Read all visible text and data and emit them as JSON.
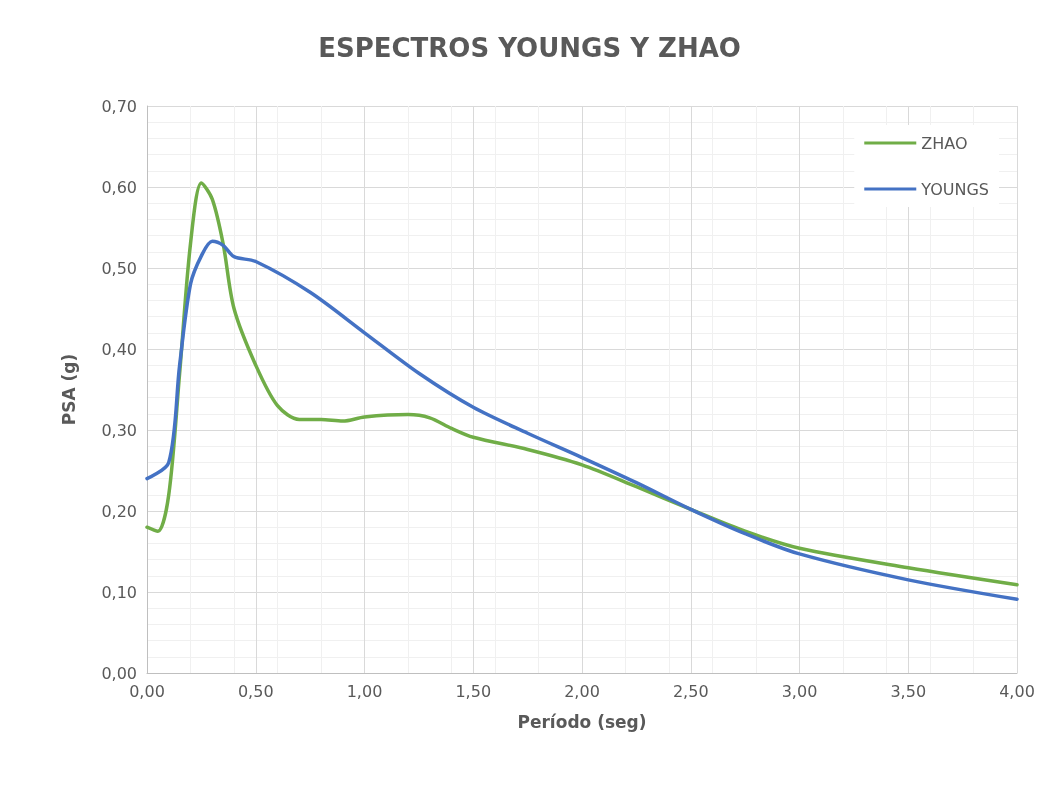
{
  "chart_data": {
    "type": "line",
    "title": "ESPECTROS YOUNGS Y ZHAO",
    "xlabel": "Período (seg)",
    "ylabel": "PSA (g)",
    "xlim": [
      0,
      4
    ],
    "xticks": [
      {
        "value": 0,
        "label": "0,00"
      },
      {
        "value": 0.5,
        "label": "0,50"
      },
      {
        "value": 1,
        "label": "1,00"
      },
      {
        "value": 1.5,
        "label": "1,50"
      },
      {
        "value": 2,
        "label": "2,00"
      },
      {
        "value": 2.5,
        "label": "2,50"
      },
      {
        "value": 3,
        "label": "3,00"
      },
      {
        "value": 3.5,
        "label": "3,50"
      },
      {
        "value": 4,
        "label": "4,00"
      }
    ],
    "ylim": [
      0,
      0.7
    ],
    "yticks": [
      {
        "value": 0,
        "label": "0,00"
      },
      {
        "value": 0.1,
        "label": "0,10"
      },
      {
        "value": 0.2,
        "label": "0,20"
      },
      {
        "value": 0.3,
        "label": "0,30"
      },
      {
        "value": 0.4,
        "label": "0,40"
      },
      {
        "value": 0.5,
        "label": "0,50"
      },
      {
        "value": 0.6,
        "label": "0,60"
      },
      {
        "value": 0.7,
        "label": "0,70"
      }
    ],
    "grid": true,
    "legend": "top right",
    "marker": "none",
    "line_style": "solid",
    "series": [
      {
        "name": "ZHAO",
        "color": "#70ad47",
        "x": [
          0,
          0.05,
          0.1,
          0.15,
          0.2,
          0.25,
          0.3,
          0.35,
          0.4,
          0.5,
          0.6,
          0.7,
          0.8,
          0.9,
          1.0,
          1.2,
          1.3,
          1.4,
          1.5,
          1.75,
          2.0,
          2.25,
          2.5,
          2.75,
          3.0,
          3.5,
          4.0
        ],
        "values": [
          0.18,
          0.175,
          0.22,
          0.37,
          0.53,
          0.605,
          0.585,
          0.53,
          0.45,
          0.38,
          0.33,
          0.313,
          0.313,
          0.311,
          0.316,
          0.319,
          0.315,
          0.302,
          0.291,
          0.276,
          0.257,
          0.23,
          0.202,
          0.175,
          0.154,
          0.13,
          0.109
        ]
      },
      {
        "name": "YOUNGS",
        "color": "#4472c4",
        "x": [
          0,
          0.1,
          0.15,
          0.2,
          0.25,
          0.3,
          0.35,
          0.4,
          0.5,
          0.75,
          1.0,
          1.25,
          1.5,
          1.75,
          2.0,
          2.25,
          2.5,
          2.75,
          3.0,
          3.5,
          4.0
        ],
        "values": [
          0.24,
          0.26,
          0.38,
          0.48,
          0.515,
          0.533,
          0.528,
          0.514,
          0.508,
          0.47,
          0.42,
          0.37,
          0.328,
          0.296,
          0.266,
          0.235,
          0.202,
          0.172,
          0.147,
          0.115,
          0.091
        ]
      }
    ]
  }
}
